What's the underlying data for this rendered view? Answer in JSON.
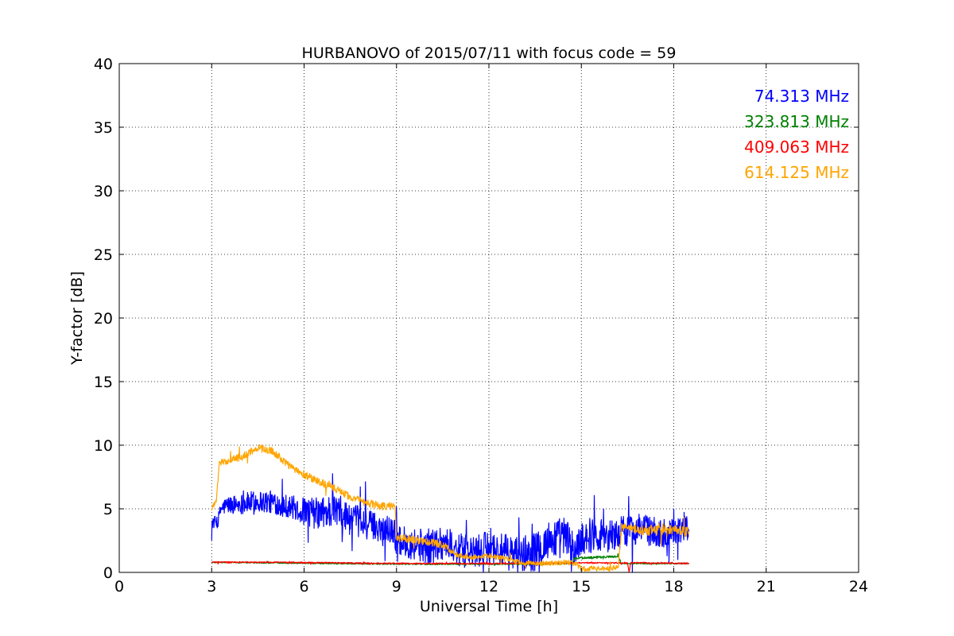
{
  "chart_data": {
    "type": "line",
    "title": "HURBANOVO of 2015/07/11 with focus code = 59",
    "xlabel": "Universal Time [h]",
    "ylabel": "Y-factor [dB]",
    "xlim": [
      0,
      24
    ],
    "ylim": [
      0,
      40
    ],
    "xticks": [
      0,
      3,
      6,
      9,
      12,
      15,
      18,
      21,
      24
    ],
    "yticks": [
      0,
      5,
      10,
      15,
      20,
      25,
      30,
      35,
      40
    ],
    "xtick_labels": [
      "0",
      "3",
      "6",
      "9",
      "12",
      "15",
      "18",
      "21",
      "24"
    ],
    "ytick_labels": [
      "0",
      "5",
      "10",
      "15",
      "20",
      "25",
      "30",
      "35",
      "40"
    ],
    "grid": true,
    "legend_placement": "top-right",
    "series": [
      {
        "name": "74.313 MHz",
        "color": "#0000ff",
        "x": [
          3.0,
          3.2,
          3.3,
          3.5,
          4.0,
          4.5,
          5.0,
          5.5,
          6.0,
          6.5,
          7.0,
          7.5,
          8.0,
          8.5,
          8.9,
          9.0,
          9.5,
          10.0,
          10.5,
          11.0,
          11.5,
          12.0,
          12.5,
          13.0,
          13.5,
          14.0,
          14.5,
          14.8,
          15.0,
          15.5,
          16.0,
          16.5,
          17.0,
          17.5,
          18.0,
          18.5
        ],
        "y": [
          3.9,
          4.0,
          5.0,
          5.3,
          5.4,
          5.6,
          5.5,
          5.2,
          4.8,
          4.6,
          4.9,
          4.2,
          3.8,
          3.5,
          3.4,
          2.5,
          2.3,
          2.0,
          2.4,
          1.8,
          1.5,
          2.0,
          1.6,
          1.4,
          1.6,
          2.6,
          2.8,
          1.6,
          2.8,
          3.0,
          2.9,
          3.3,
          3.5,
          3.0,
          3.3,
          3.4
        ],
        "noise": [
          0.5,
          0.5,
          0.6,
          0.7,
          0.8,
          0.9,
          0.9,
          0.9,
          1.1,
          1.3,
          1.4,
          1.3,
          1.2,
          1.1,
          1.2,
          1.1,
          1.3,
          1.4,
          1.4,
          1.3,
          1.3,
          1.3,
          1.4,
          1.5,
          1.5,
          1.6,
          1.6,
          1.3,
          1.4,
          1.4,
          1.3,
          1.3,
          1.2,
          1.2,
          1.1,
          1.0
        ]
      },
      {
        "name": "323.813 MHz",
        "color": "#008000",
        "x": [
          3.0,
          5.0,
          7.0,
          9.0,
          11.0,
          13.0,
          14.7,
          14.8,
          15.5,
          16.2,
          16.3,
          17.0,
          18.5
        ],
        "y": [
          0.8,
          0.75,
          0.7,
          0.65,
          0.65,
          0.65,
          0.7,
          1.1,
          1.2,
          1.25,
          0.7,
          0.7,
          0.7
        ],
        "noise": [
          0.05,
          0.05,
          0.05,
          0.05,
          0.05,
          0.05,
          0.05,
          0.08,
          0.08,
          0.08,
          0.05,
          0.05,
          0.05
        ]
      },
      {
        "name": "409.063 MHz",
        "color": "#ff0000",
        "x": [
          3.0,
          5.0,
          7.0,
          9.0,
          11.0,
          13.0,
          15.0,
          16.5,
          16.55,
          16.6,
          17.0,
          18.5
        ],
        "y": [
          0.8,
          0.8,
          0.75,
          0.7,
          0.7,
          0.7,
          0.75,
          0.75,
          0.0,
          0.75,
          0.75,
          0.7
        ],
        "noise": [
          0.05,
          0.05,
          0.05,
          0.05,
          0.05,
          0.05,
          0.05,
          0.05,
          0.0,
          0.05,
          0.05,
          0.05
        ]
      },
      {
        "name": "614.125 MHz",
        "color": "#ffa500",
        "x": [
          3.0,
          3.15,
          3.25,
          3.5,
          4.0,
          4.5,
          5.0,
          5.5,
          6.0,
          6.5,
          7.0,
          7.5,
          8.0,
          8.5,
          8.95,
          9.0,
          9.5,
          10.0,
          10.5,
          11.0,
          11.5,
          12.0,
          12.5,
          13.0,
          13.5,
          14.0,
          14.5,
          14.8,
          15.0,
          15.5,
          16.0,
          16.2,
          16.3,
          16.5,
          17.0,
          17.5,
          18.0,
          18.5
        ],
        "y": [
          5.0,
          5.6,
          8.6,
          8.8,
          9.1,
          9.8,
          9.5,
          8.4,
          7.7,
          7.1,
          6.6,
          5.9,
          5.5,
          5.2,
          5.2,
          2.7,
          2.6,
          2.4,
          2.2,
          1.3,
          1.2,
          1.3,
          1.1,
          0.8,
          0.7,
          0.7,
          0.8,
          0.7,
          0.3,
          0.3,
          0.3,
          0.5,
          3.6,
          3.5,
          3.3,
          3.4,
          3.2,
          3.2
        ],
        "noise": [
          0.2,
          0.2,
          0.2,
          0.3,
          0.3,
          0.3,
          0.3,
          0.3,
          0.3,
          0.3,
          0.3,
          0.3,
          0.3,
          0.3,
          0.3,
          0.3,
          0.3,
          0.3,
          0.3,
          0.2,
          0.2,
          0.2,
          0.2,
          0.2,
          0.2,
          0.2,
          0.2,
          0.2,
          0.2,
          0.2,
          0.2,
          0.2,
          0.3,
          0.3,
          0.4,
          0.5,
          0.5,
          0.4
        ]
      }
    ]
  }
}
